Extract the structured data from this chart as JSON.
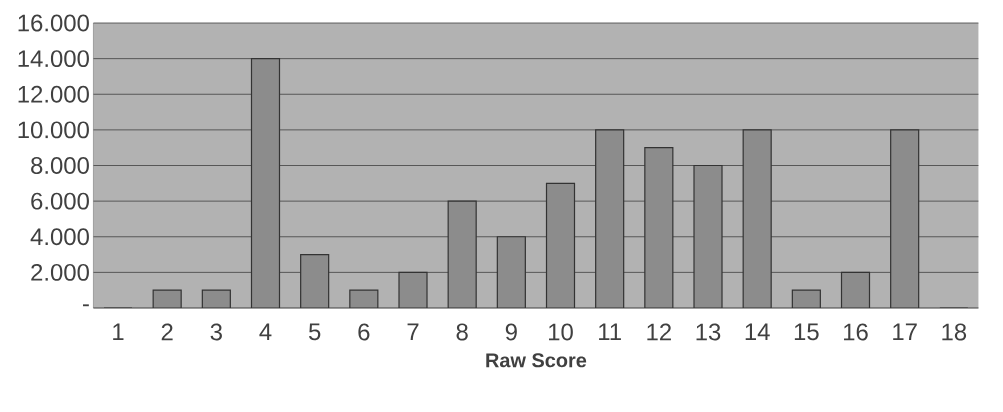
{
  "chart_data": {
    "type": "bar",
    "xlabel": "Raw Score",
    "categories": [
      "1",
      "2",
      "3",
      "4",
      "5",
      "6",
      "7",
      "8",
      "9",
      "10",
      "11",
      "12",
      "13",
      "14",
      "15",
      "16",
      "17",
      "18"
    ],
    "values": [
      0,
      1,
      1,
      14,
      3,
      1,
      2,
      6,
      4,
      7,
      10,
      9,
      8,
      10,
      1,
      2,
      10,
      0
    ],
    "color": "#8c8c8c",
    "ylim": [
      0,
      16
    ],
    "yticks": [
      {
        "value": 0,
        "label": "-"
      },
      {
        "value": 2,
        "label": "2.000"
      },
      {
        "value": 4,
        "label": "4.000"
      },
      {
        "value": 6,
        "label": "6.000"
      },
      {
        "value": 8,
        "label": "8.000"
      },
      {
        "value": 10,
        "label": "10.000"
      },
      {
        "value": 12,
        "label": "12.000"
      },
      {
        "value": 14,
        "label": "14.000"
      },
      {
        "value": 16,
        "label": "16.000"
      }
    ],
    "grid": "y"
  }
}
